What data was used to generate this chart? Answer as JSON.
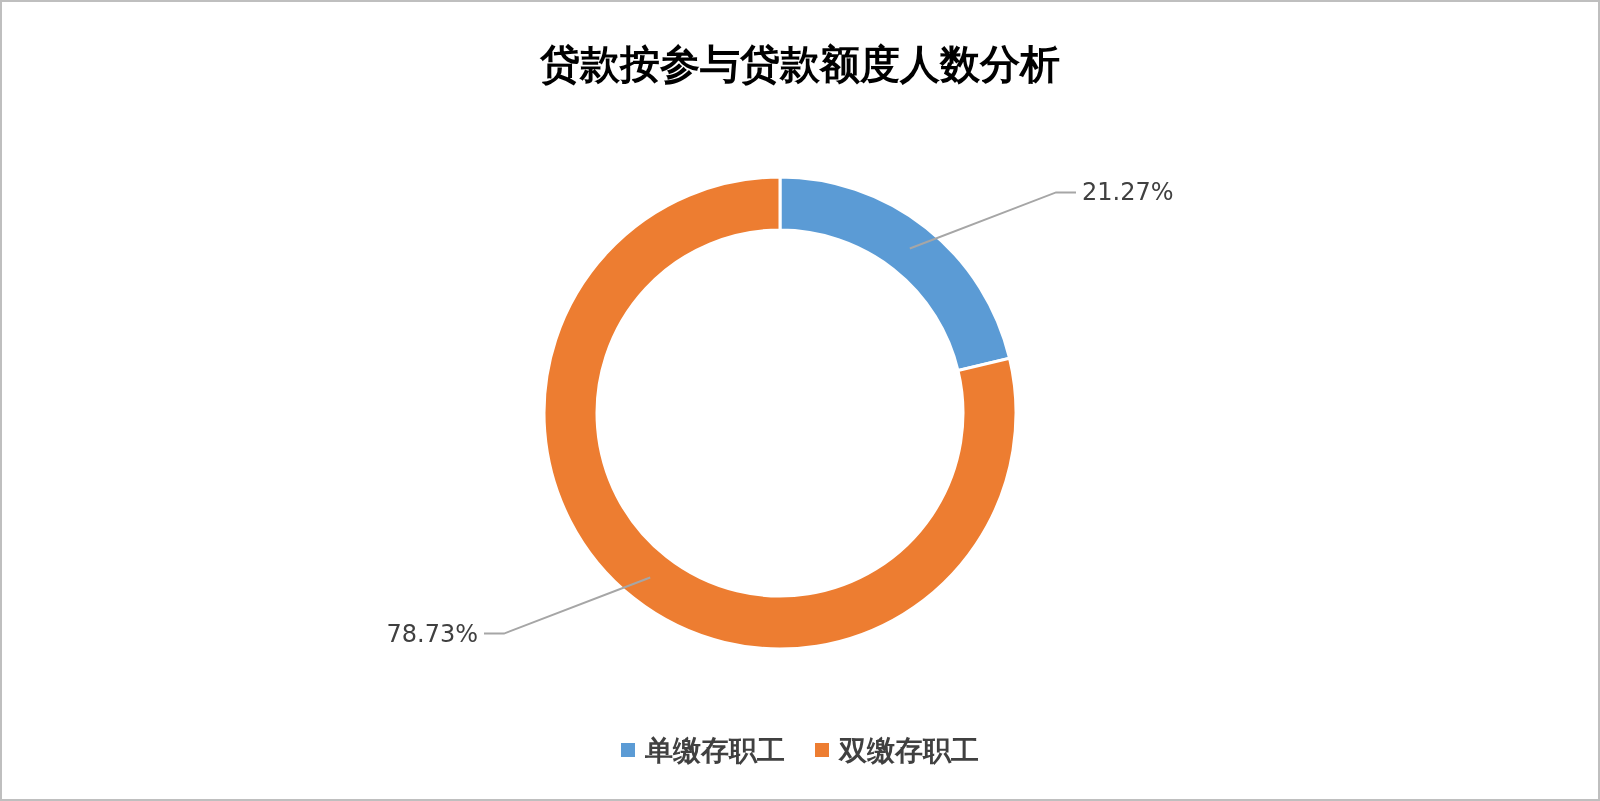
{
  "chart_data": {
    "type": "donut",
    "title": "贷款按参与贷款额度人数分析",
    "categories": [
      "单缴存职工",
      "双缴存职工"
    ],
    "values": [
      21.27,
      78.73
    ],
    "colors": [
      "#5b9bd5",
      "#ed7d31"
    ],
    "value_labels": [
      "21.27%",
      "78.73%"
    ],
    "legend": "bottom"
  }
}
